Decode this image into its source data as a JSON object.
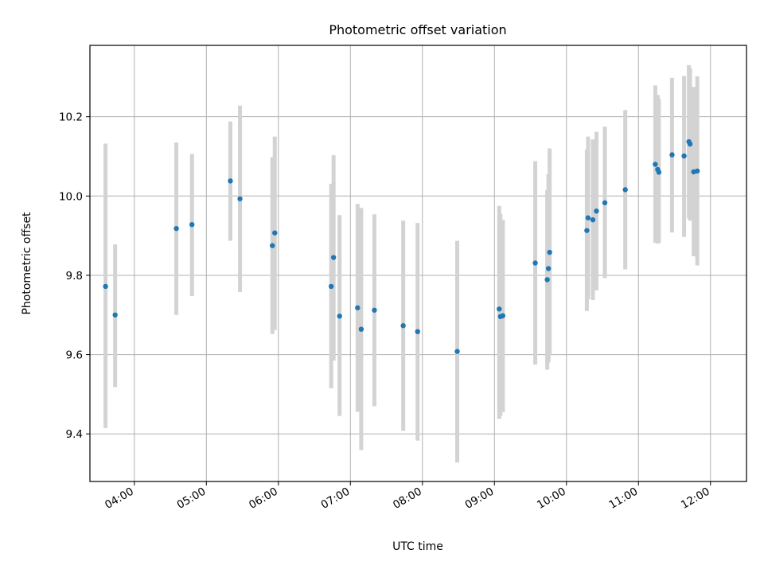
{
  "chart_data": {
    "type": "scatter",
    "title": "Photometric offset variation",
    "xlabel": "UTC time",
    "ylabel": "Photometric offset",
    "x_unit": "UTC HH:MM",
    "xlim": [
      "03:23",
      "12:30"
    ],
    "ylim": [
      9.28,
      10.38
    ],
    "x_ticks": [
      "04:00",
      "05:00",
      "06:00",
      "07:00",
      "08:00",
      "09:00",
      "10:00",
      "11:00",
      "12:00"
    ],
    "y_ticks": [
      9.4,
      9.6,
      9.8,
      10.0,
      10.2
    ],
    "grid": true,
    "legend": "none",
    "colors": {
      "marker": "#1f77b4",
      "errorbar": "#d3d3d3",
      "grid": "#b0b0b0"
    },
    "points": [
      {
        "x": "03:36",
        "y": 9.772,
        "ylow": 9.415,
        "yhigh": 10.132
      },
      {
        "x": "03:44",
        "y": 9.7,
        "ylow": 9.518,
        "yhigh": 9.878
      },
      {
        "x": "04:35",
        "y": 9.918,
        "ylow": 9.7,
        "yhigh": 10.135
      },
      {
        "x": "04:48",
        "y": 9.928,
        "ylow": 9.748,
        "yhigh": 10.106
      },
      {
        "x": "05:20",
        "y": 10.038,
        "ylow": 9.887,
        "yhigh": 10.188
      },
      {
        "x": "05:28",
        "y": 9.993,
        "ylow": 9.758,
        "yhigh": 10.228
      },
      {
        "x": "05:55",
        "y": 9.875,
        "ylow": 9.652,
        "yhigh": 10.098
      },
      {
        "x": "05:57",
        "y": 9.907,
        "ylow": 9.662,
        "yhigh": 10.15
      },
      {
        "x": "06:44",
        "y": 9.772,
        "ylow": 9.515,
        "yhigh": 10.031
      },
      {
        "x": "06:46",
        "y": 9.845,
        "ylow": 9.585,
        "yhigh": 10.103
      },
      {
        "x": "06:51",
        "y": 9.697,
        "ylow": 9.445,
        "yhigh": 9.952
      },
      {
        "x": "07:06",
        "y": 9.718,
        "ylow": 9.456,
        "yhigh": 9.98
      },
      {
        "x": "07:09",
        "y": 9.664,
        "ylow": 9.359,
        "yhigh": 9.97
      },
      {
        "x": "07:20",
        "y": 9.712,
        "ylow": 9.47,
        "yhigh": 9.954
      },
      {
        "x": "07:44",
        "y": 9.673,
        "ylow": 9.408,
        "yhigh": 9.938
      },
      {
        "x": "07:56",
        "y": 9.658,
        "ylow": 9.383,
        "yhigh": 9.932
      },
      {
        "x": "08:29",
        "y": 9.608,
        "ylow": 9.328,
        "yhigh": 9.887
      },
      {
        "x": "09:04",
        "y": 9.715,
        "ylow": 9.438,
        "yhigh": 9.975
      },
      {
        "x": "09:05",
        "y": 9.696,
        "ylow": 9.445,
        "yhigh": 9.955
      },
      {
        "x": "09:07",
        "y": 9.698,
        "ylow": 9.455,
        "yhigh": 9.94
      },
      {
        "x": "09:34",
        "y": 9.831,
        "ylow": 9.575,
        "yhigh": 10.088
      },
      {
        "x": "09:44",
        "y": 9.789,
        "ylow": 9.562,
        "yhigh": 10.015
      },
      {
        "x": "09:45",
        "y": 9.817,
        "ylow": 9.58,
        "yhigh": 10.055
      },
      {
        "x": "09:46",
        "y": 9.858,
        "ylow": 9.598,
        "yhigh": 10.12
      },
      {
        "x": "10:17",
        "y": 9.913,
        "ylow": 9.71,
        "yhigh": 10.117
      },
      {
        "x": "10:18",
        "y": 9.945,
        "ylow": 9.74,
        "yhigh": 10.15
      },
      {
        "x": "10:22",
        "y": 9.94,
        "ylow": 9.738,
        "yhigh": 10.143
      },
      {
        "x": "10:25",
        "y": 9.962,
        "ylow": 9.762,
        "yhigh": 10.162
      },
      {
        "x": "10:32",
        "y": 9.983,
        "ylow": 9.793,
        "yhigh": 10.175
      },
      {
        "x": "10:49",
        "y": 10.016,
        "ylow": 9.815,
        "yhigh": 10.217
      },
      {
        "x": "11:14",
        "y": 10.08,
        "ylow": 9.882,
        "yhigh": 10.279
      },
      {
        "x": "11:16",
        "y": 10.067,
        "ylow": 9.88,
        "yhigh": 10.255
      },
      {
        "x": "11:17",
        "y": 10.06,
        "ylow": 9.882,
        "yhigh": 10.245
      },
      {
        "x": "11:28",
        "y": 10.104,
        "ylow": 9.908,
        "yhigh": 10.298
      },
      {
        "x": "11:38",
        "y": 10.101,
        "ylow": 9.897,
        "yhigh": 10.303
      },
      {
        "x": "11:42",
        "y": 10.137,
        "ylow": 9.944,
        "yhigh": 10.33
      },
      {
        "x": "11:43",
        "y": 10.131,
        "ylow": 9.938,
        "yhigh": 10.322
      },
      {
        "x": "11:46",
        "y": 10.061,
        "ylow": 9.848,
        "yhigh": 10.275
      },
      {
        "x": "11:49",
        "y": 10.063,
        "ylow": 9.825,
        "yhigh": 10.302
      }
    ]
  }
}
